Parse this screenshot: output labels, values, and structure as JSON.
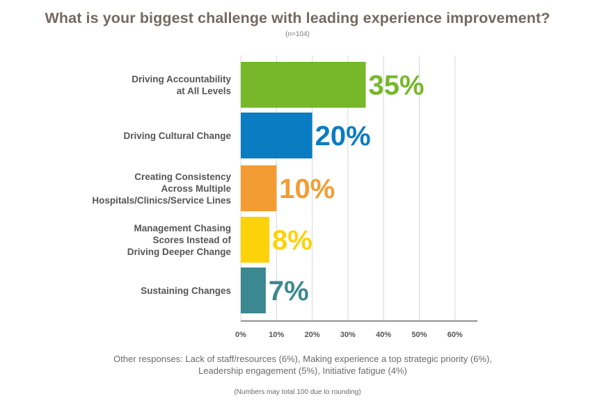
{
  "chart_data": {
    "type": "bar",
    "orientation": "horizontal",
    "title": "What is your biggest challenge with leading experience improvement?",
    "subtitle": "(n=104)",
    "categories": [
      [
        "Driving Accountability",
        "at All Levels"
      ],
      [
        "Driving Cultural Change"
      ],
      [
        "Creating Consistency",
        "Across Multiple",
        "Hospitals/Clinics/Service Lines"
      ],
      [
        "Management Chasing",
        "Scores Instead of",
        "Driving Deeper Change"
      ],
      [
        "Sustaining Changes"
      ]
    ],
    "values": [
      35,
      20,
      10,
      8,
      7
    ],
    "value_labels": [
      "35%",
      "20%",
      "10%",
      "8%",
      "7%"
    ],
    "colors": [
      "#76b82a",
      "#0a7cc1",
      "#f39c33",
      "#fdd20a",
      "#3c8890"
    ],
    "xlim": [
      0,
      60
    ],
    "xticks": [
      0,
      10,
      20,
      30,
      40,
      50,
      60
    ],
    "xtick_labels": [
      "0%",
      "10%",
      "20%",
      "30%",
      "40%",
      "50%",
      "60%"
    ],
    "grid": true
  },
  "notes": {
    "other_responses": "Other responses: Lack of staff/resources (6%), Making experience a top strategic priority (6%), Leadership engagement (5%), Initiative fatigue (4%)",
    "rounding": "(Numbers may total 100 due to rounding)"
  }
}
